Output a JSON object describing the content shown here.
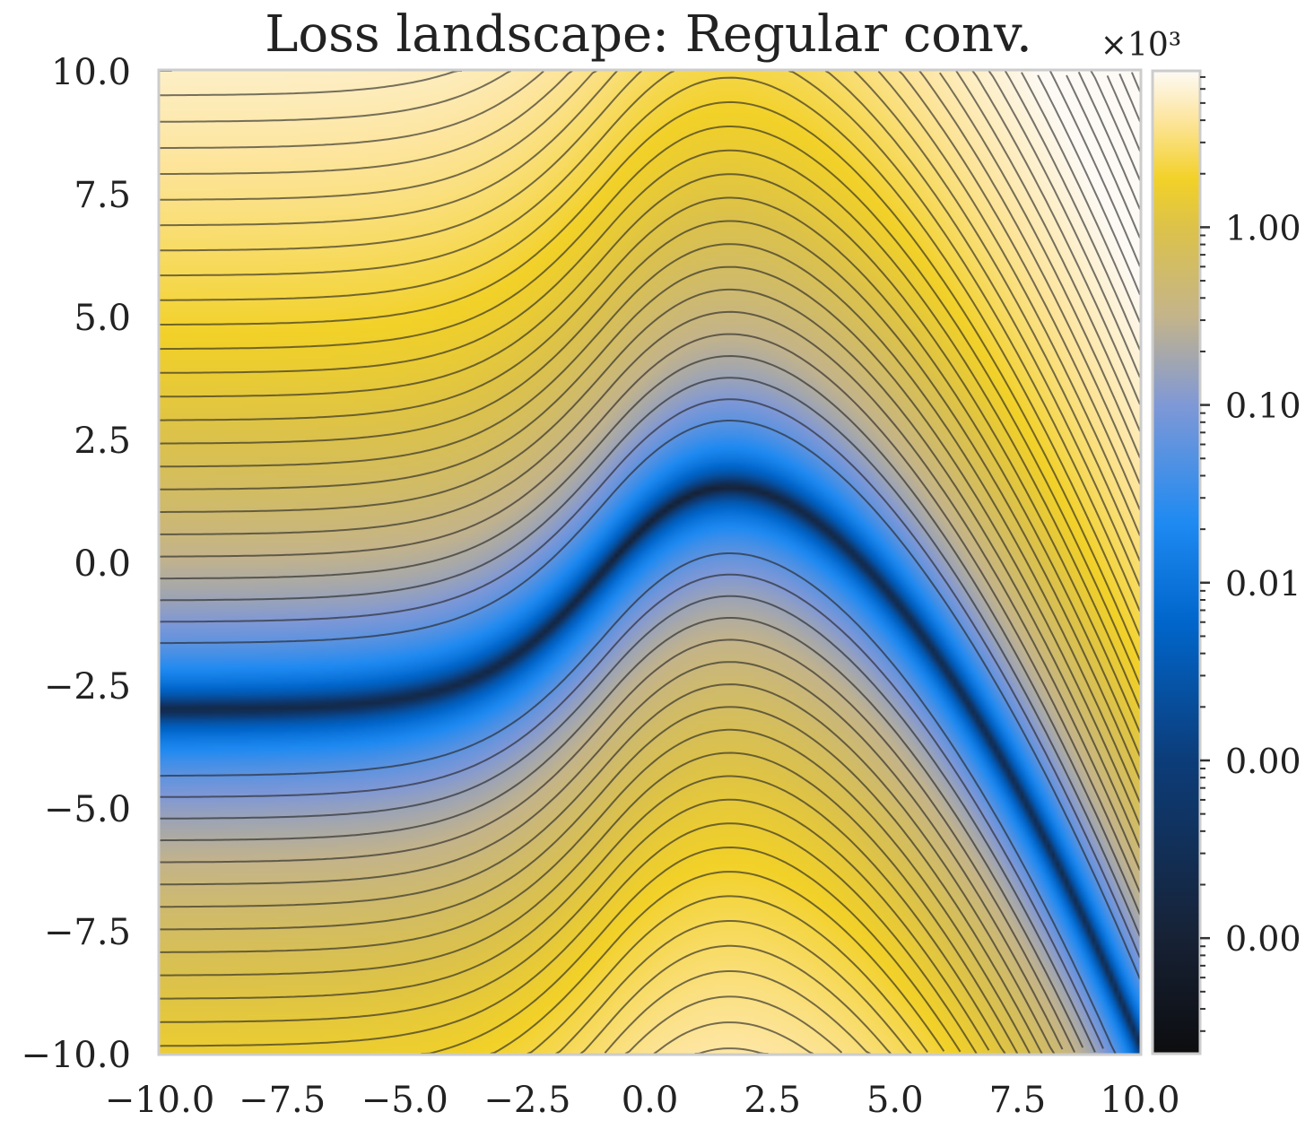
{
  "chart_data": {
    "type": "heatmap",
    "title": "Loss landscape: Regular conv.",
    "xlabel": "",
    "ylabel": "",
    "xlim": [
      -10,
      10
    ],
    "ylim": [
      -10,
      10
    ],
    "x_ticks": [
      -10.0,
      -7.5,
      -5.0,
      -2.5,
      0.0,
      2.5,
      5.0,
      7.5,
      10.0
    ],
    "x_tick_labels": [
      "−10.0",
      "−7.5",
      "−5.0",
      "−2.5",
      "0.0",
      "2.5",
      "5.0",
      "7.5",
      "10.0"
    ],
    "y_ticks": [
      10.0,
      7.5,
      5.0,
      2.5,
      0.0,
      -2.5,
      -5.0,
      -7.5,
      -10.0
    ],
    "y_tick_labels": [
      "10.0",
      "7.5",
      "5.0",
      "2.5",
      "0.0",
      "−2.5",
      "−5.0",
      "−7.5",
      "−10.0"
    ],
    "colorbar": {
      "scale": "log",
      "multiplier_label": "×10³",
      "major_ticks": [
        {
          "log10": 0,
          "label": "1.00"
        },
        {
          "log10": -1,
          "label": "0.10"
        },
        {
          "log10": -2,
          "label": "0.01"
        },
        {
          "log10": -3,
          "label": "0.00"
        },
        {
          "log10": -4,
          "label": "0.00"
        }
      ],
      "range_log10": [
        -4.65,
        0.88
      ],
      "colors": [
        {
          "stop": 0.0,
          "color": "#0d0d0f"
        },
        {
          "stop": 0.12,
          "color": "#172236"
        },
        {
          "stop": 0.3,
          "color": "#0c3d7a"
        },
        {
          "stop": 0.44,
          "color": "#0066cc"
        },
        {
          "stop": 0.54,
          "color": "#1e8af2"
        },
        {
          "stop": 0.66,
          "color": "#7f98d6"
        },
        {
          "stop": 0.75,
          "color": "#c4b48a"
        },
        {
          "stop": 0.84,
          "color": "#dcc24a"
        },
        {
          "stop": 0.89,
          "color": "#f2d128"
        },
        {
          "stop": 0.95,
          "color": "#fde59d"
        },
        {
          "stop": 1.0,
          "color": "#fdfaf5"
        }
      ]
    },
    "surface": {
      "valley_curve": "y = 3*tanh(0.38*(x+0.8)) - 0.11*(x+0.8)^2 * [x > -0.8]",
      "min_point": [
        0.3,
        0.0
      ],
      "min_value": 1e-05,
      "contour_lines": true,
      "contour_color": "#222222"
    },
    "grid": false,
    "legend": "none"
  }
}
